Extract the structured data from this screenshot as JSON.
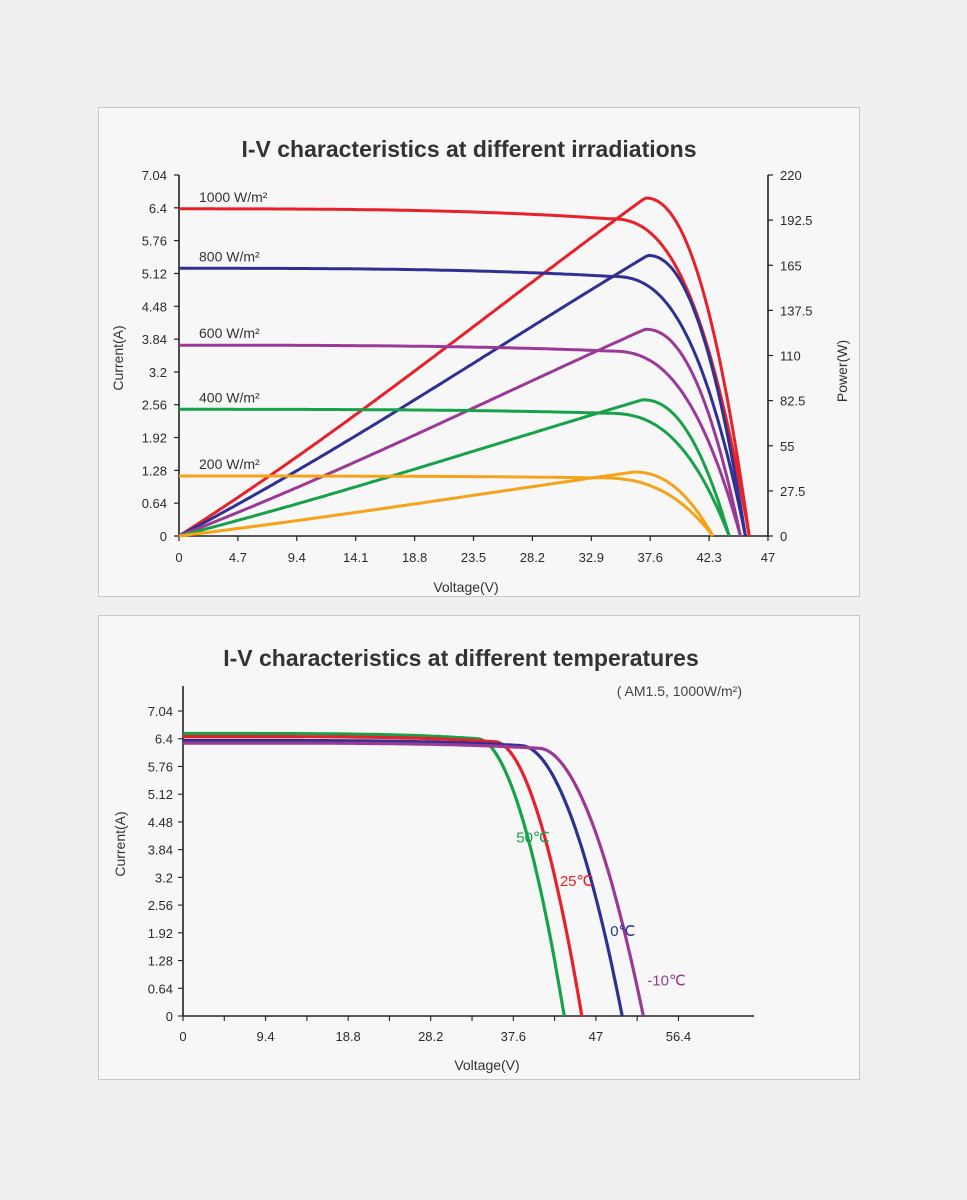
{
  "chart_data": [
    {
      "type": "line",
      "title": "I-V characteristics at different irradiations",
      "xlabel": "Voltage(V)",
      "ylabel": "Current(A)",
      "y2label": "Power(W)",
      "xlim": [
        0,
        47
      ],
      "ylim": [
        0,
        7.04
      ],
      "y2lim": [
        0,
        220
      ],
      "x_ticks": [
        "0",
        "4.7",
        "9.4",
        "14.1",
        "18.8",
        "23.5",
        "28.2",
        "32.9",
        "37.6",
        "42.3",
        "47"
      ],
      "y_ticks": [
        "0",
        "0.64",
        "1.28",
        "1.92",
        "2.56",
        "3.2",
        "3.84",
        "4.48",
        "5.12",
        "5.76",
        "6.4",
        "7.04"
      ],
      "y2_ticks": [
        "0",
        "27.5",
        "55",
        "82.5",
        "110",
        "137.5",
        "165",
        "192.5",
        "220"
      ],
      "grid": false,
      "series": [
        {
          "name": "1000 W/m²",
          "color": "#e8202a",
          "isc": 6.38,
          "voc": 45.5,
          "pmax": 206,
          "vmp": 37.2
        },
        {
          "name": "800 W/m²",
          "color": "#2e3192",
          "isc": 5.22,
          "voc": 45.2,
          "pmax": 171,
          "vmp": 37.4
        },
        {
          "name": "600 W/m²",
          "color": "#9b3a96",
          "isc": 3.72,
          "voc": 44.8,
          "pmax": 126,
          "vmp": 37.2
        },
        {
          "name": "400 W/m²",
          "color": "#17a24a",
          "isc": 2.47,
          "voc": 43.9,
          "pmax": 83,
          "vmp": 37.0
        },
        {
          "name": "200 W/m²",
          "color": "#f5a31a",
          "isc": 1.17,
          "voc": 42.6,
          "pmax": 39,
          "vmp": 36.3
        }
      ]
    },
    {
      "type": "line",
      "title": "I-V characteristics at different temperatures",
      "subtitle": "( AM1.5,  1000W/m²)",
      "xlabel": "Voltage(V)",
      "ylabel": "Current(A)",
      "xlim": [
        0,
        65
      ],
      "ylim": [
        0,
        7.04
      ],
      "x_ticks": [
        "0",
        "9.4",
        "18.8",
        "28.2",
        "37.6",
        "47",
        "56.4"
      ],
      "y_ticks": [
        "0",
        "0.64",
        "1.28",
        "1.92",
        "2.56",
        "3.2",
        "3.84",
        "4.48",
        "5.76",
        "6.4",
        "7.04"
      ],
      "y_tick_values": [
        0,
        0.64,
        1.28,
        1.92,
        2.56,
        3.2,
        3.84,
        4.48,
        5.12,
        5.76,
        6.4,
        7.04
      ],
      "y_tick_labels_full": [
        "0",
        "0.64",
        "1.28",
        "1.92",
        "2.56",
        "3.2",
        "3.84",
        "4.48",
        "5.12",
        "5.76",
        "6.4",
        "7.04"
      ],
      "grid": false,
      "series": [
        {
          "name": "50℃",
          "color": "#17a24a",
          "isc": 6.52,
          "voc": 43.4,
          "knee": 33.5
        },
        {
          "name": "25℃",
          "color": "#e8202a",
          "isc": 6.45,
          "voc": 45.4,
          "knee": 35.5
        },
        {
          "name": "0℃",
          "color": "#2e3192",
          "isc": 6.36,
          "voc": 50.0,
          "knee": 38.5
        },
        {
          "name": "-10℃",
          "color": "#9b3a96",
          "isc": 6.3,
          "voc": 52.4,
          "knee": 40.5
        }
      ]
    }
  ]
}
